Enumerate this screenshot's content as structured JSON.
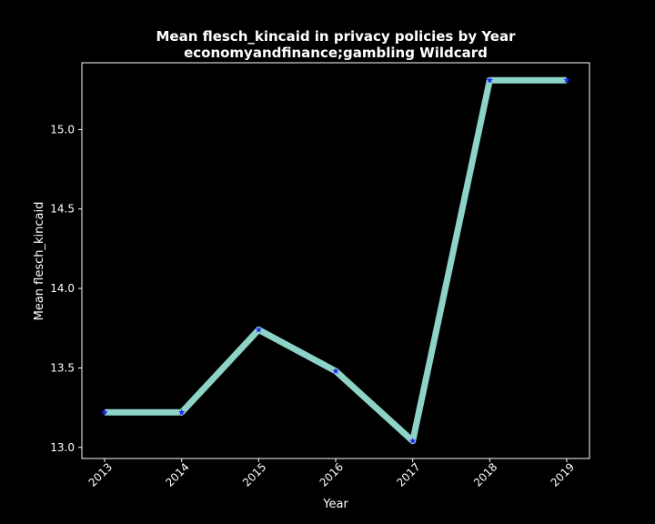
{
  "chart_data": {
    "type": "line",
    "title_line1": "Mean flesch_kincaid in privacy policies by Year",
    "title_line2": "economyandfinance;gambling Wildcard",
    "xlabel": "Year",
    "ylabel": "Mean flesch_kincaid",
    "x": [
      "2013",
      "2014",
      "2015",
      "2016",
      "2017",
      "2018",
      "2019"
    ],
    "values": [
      13.22,
      13.22,
      13.74,
      13.48,
      13.04,
      15.31,
      15.31
    ],
    "ylim": [
      12.93,
      15.42
    ],
    "yticks": [
      13.0,
      13.5,
      14.0,
      14.5,
      15.0
    ],
    "ytick_labels": [
      "13.0",
      "13.5",
      "14.0",
      "14.5",
      "15.0"
    ],
    "line_color": "#8dd3c7",
    "marker_color": "#1f1fff",
    "marker": "star",
    "background": "#000000",
    "grid": false
  }
}
